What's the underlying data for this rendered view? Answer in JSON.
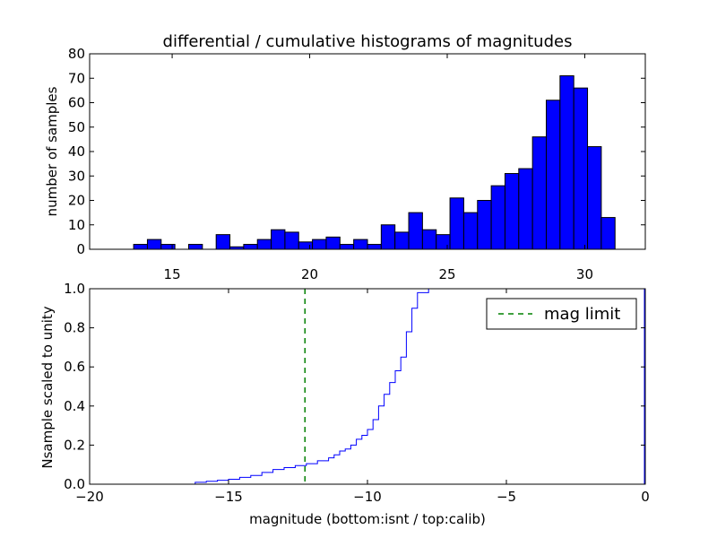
{
  "chart_data": [
    {
      "type": "bar",
      "title": "differential / cumulative histograms of magnitudes",
      "xlabel": "",
      "ylabel": "number of samples",
      "xlim": [
        12.0,
        32.2
      ],
      "ylim": [
        0,
        80
      ],
      "xticks": [
        15,
        20,
        25,
        30
      ],
      "yticks": [
        0,
        10,
        20,
        30,
        40,
        50,
        60,
        70,
        80
      ],
      "bar_color": "#0000ff",
      "bin_start": 13.6,
      "bin_width": 0.5,
      "values": [
        2,
        4,
        2,
        0,
        2,
        0,
        6,
        1,
        2,
        4,
        8,
        7,
        3,
        4,
        5,
        2,
        4,
        2,
        10,
        7,
        15,
        8,
        6,
        21,
        15,
        20,
        26,
        31,
        33,
        46,
        61,
        71,
        66,
        42,
        13
      ],
      "grid": false
    },
    {
      "type": "line",
      "xlabel": "magnitude (bottom:isnt / top:calib)",
      "ylabel": "Nsample scaled to unity",
      "xlim": [
        -20,
        0
      ],
      "ylim": [
        0.0,
        1.0
      ],
      "xticks": [
        -20,
        -15,
        -10,
        -5,
        0
      ],
      "yticks": [
        0.0,
        0.2,
        0.4,
        0.6,
        0.8,
        1.0
      ],
      "grid": false,
      "legend_position": "top-right",
      "series": [
        {
          "color": "#0000ff",
          "style": "step",
          "x": [
            -20.0,
            -16.6,
            -16.2,
            -15.8,
            -15.4,
            -15.0,
            -14.6,
            -14.2,
            -13.8,
            -13.4,
            -13.0,
            -12.6,
            -12.2,
            -11.8,
            -11.4,
            -11.2,
            -11.0,
            -10.8,
            -10.6,
            -10.4,
            -10.2,
            -10.0,
            -9.8,
            -9.6,
            -9.4,
            -9.2,
            -9.0,
            -8.8,
            -8.6,
            -8.4,
            -8.2,
            -8.0,
            -7.8,
            -7.6,
            -0.05
          ],
          "y": [
            0.0,
            0.0,
            0.01,
            0.015,
            0.02,
            0.025,
            0.035,
            0.045,
            0.06,
            0.075,
            0.085,
            0.095,
            0.105,
            0.12,
            0.135,
            0.15,
            0.17,
            0.18,
            0.2,
            0.23,
            0.25,
            0.28,
            0.33,
            0.4,
            0.46,
            0.52,
            0.58,
            0.65,
            0.78,
            0.9,
            0.98,
            0.98,
            1.0,
            1.0,
            1.0
          ]
        },
        {
          "name": "mag limit",
          "color": "#008000",
          "style": "dashed-vertical",
          "x_value": -12.25
        }
      ]
    }
  ]
}
